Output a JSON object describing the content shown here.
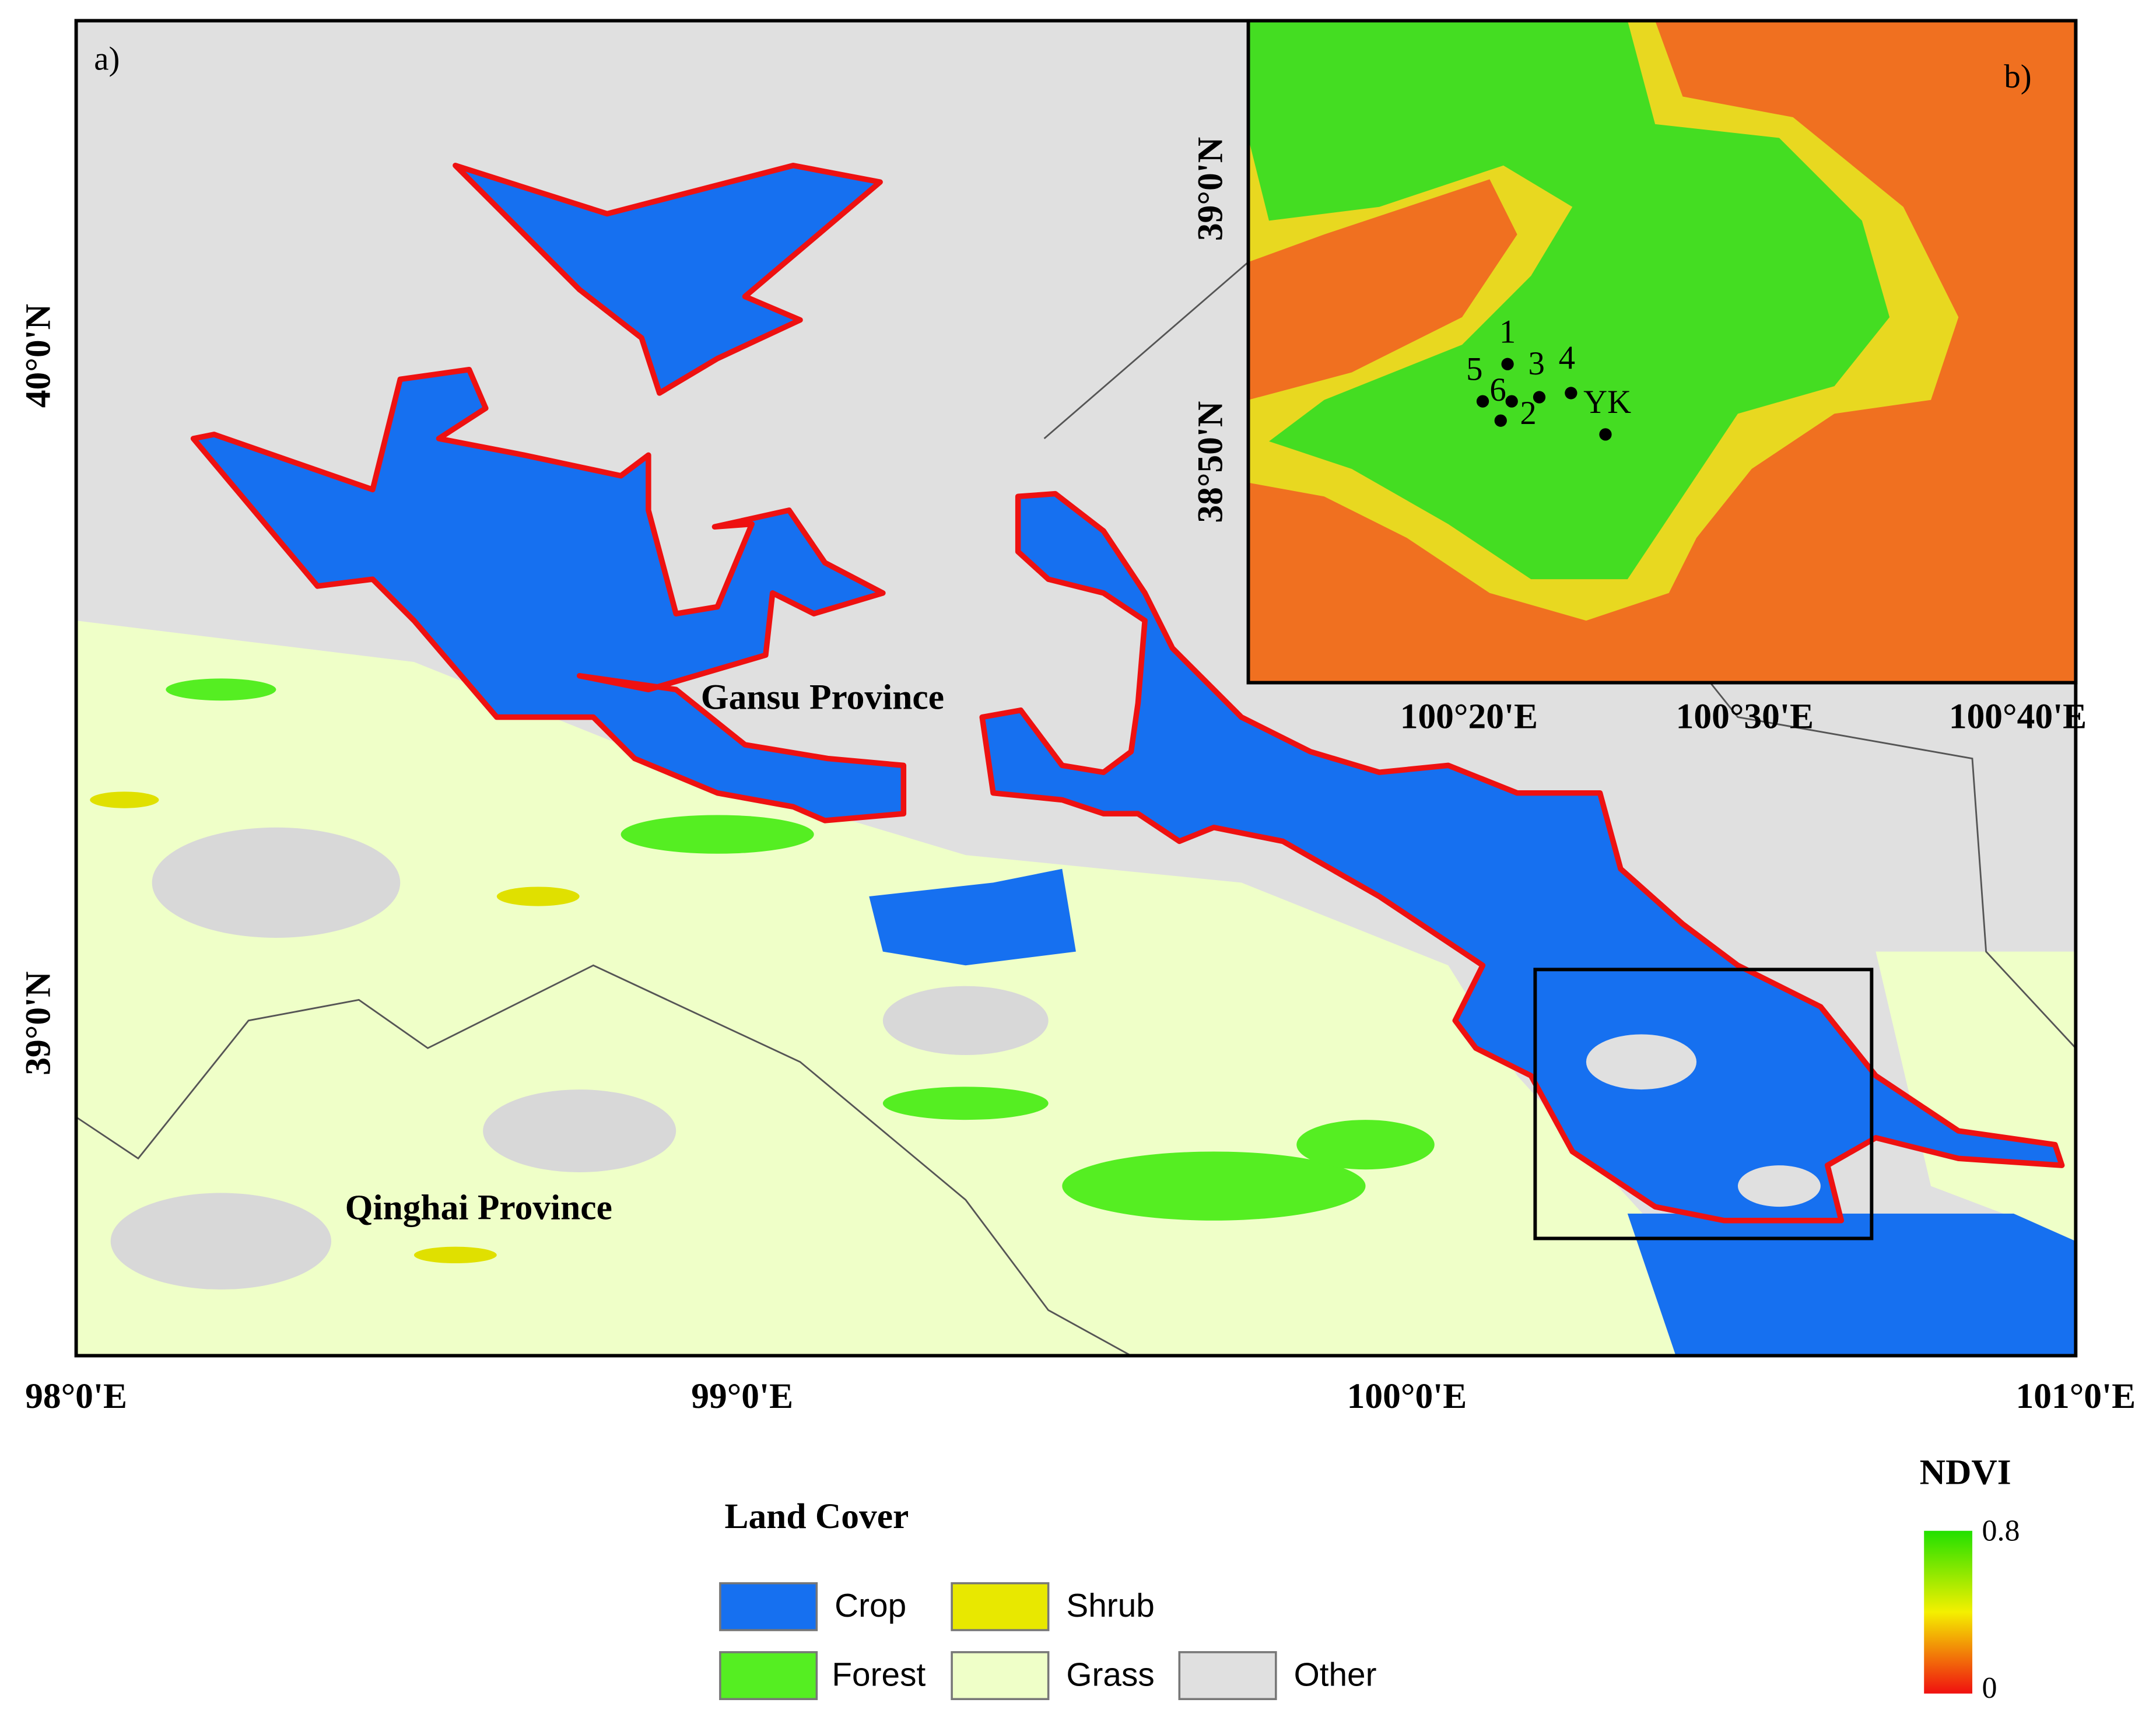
{
  "panel_a": {
    "label": "a)",
    "lon_ticks": [
      "98°0'E",
      "99°0'E",
      "100°0'E",
      "101°0'E"
    ],
    "lat_ticks": [
      "40°0'N",
      "39°0'N"
    ],
    "places": [
      "Gansu Province",
      "Qinghai Province"
    ]
  },
  "panel_b": {
    "label": "b)",
    "lon_ticks": [
      "100°20'E",
      "100°30'E",
      "100°40'E"
    ],
    "lat_ticks": [
      "39°0'N",
      "38°50'N"
    ],
    "sites": [
      "1",
      "2",
      "3",
      "4",
      "5",
      "6",
      "YK"
    ]
  },
  "legend": {
    "title": "Land Cover",
    "items": [
      "Crop",
      "Shrub",
      "Forest",
      "Grass",
      "Other"
    ]
  },
  "ndvi_legend": {
    "title": "NDVI",
    "max": "0.8",
    "min": "0"
  }
}
